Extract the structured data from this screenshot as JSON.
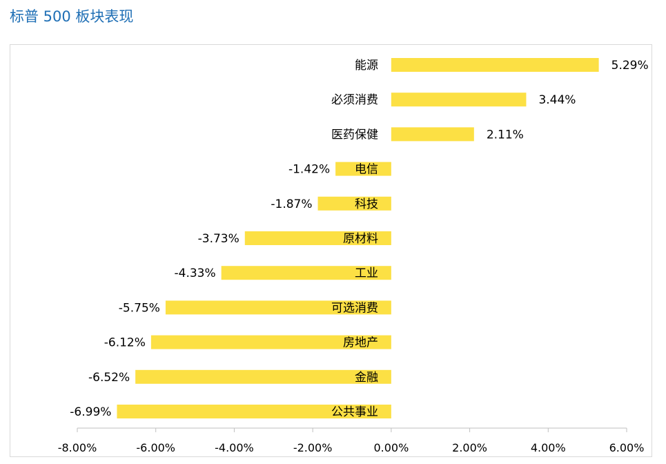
{
  "title": "标普 500 板块表现",
  "colors": {
    "bar": "#FCE044",
    "title": "#1F6FB5",
    "axis": "#BFBFBF"
  },
  "chart_data": {
    "type": "bar",
    "orientation": "horizontal",
    "title": "标普 500 板块表现",
    "categories": [
      "能源",
      "必须消费",
      "医药保健",
      "电信",
      "科技",
      "原材料",
      "工业",
      "可选消费",
      "房地产",
      "金融",
      "公共事业"
    ],
    "values": [
      5.29,
      3.44,
      2.11,
      -1.42,
      -1.87,
      -3.73,
      -4.33,
      -5.75,
      -6.12,
      -6.52,
      -6.99
    ],
    "value_labels": [
      "5.29%",
      "3.44%",
      "2.11%",
      "-1.42%",
      "-1.87%",
      "-3.73%",
      "-4.33%",
      "-5.75%",
      "-6.12%",
      "-6.52%",
      "-6.99%"
    ],
    "xlim": [
      -8,
      6
    ],
    "xticks": [
      -8,
      -6,
      -4,
      -2,
      0,
      2,
      4,
      6
    ],
    "xtick_labels": [
      "-8.00%",
      "-6.00%",
      "-4.00%",
      "-2.00%",
      "0.00%",
      "2.00%",
      "4.00%",
      "6.00%"
    ],
    "grid": false,
    "legend": "none"
  }
}
